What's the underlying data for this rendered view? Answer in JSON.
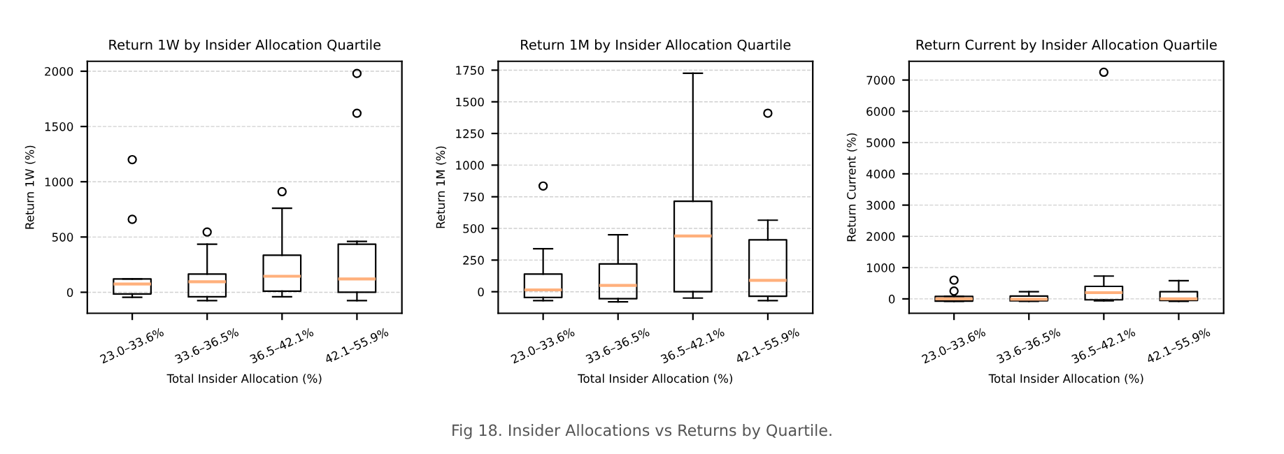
{
  "chart_data": [
    {
      "type": "box",
      "title": "Return 1W by Insider Allocation Quartile",
      "xlabel": "Total Insider Allocation (%)",
      "ylabel": "Return 1W (%)",
      "categories": [
        "23.0–33.6%",
        "33.6–36.5%",
        "36.5–42.1%",
        "42.1–55.9%"
      ],
      "ylim": [
        -190,
        2090
      ],
      "yticks": [
        0,
        500,
        1000,
        1500,
        2000
      ],
      "grid": "y",
      "boxes": [
        {
          "low": -45,
          "q1": -15,
          "median": 75,
          "q3": 120,
          "high": 120,
          "outliers": [
            660,
            1200
          ]
        },
        {
          "low": -75,
          "q1": -40,
          "median": 95,
          "q3": 165,
          "high": 435,
          "outliers": [
            545
          ]
        },
        {
          "low": -40,
          "q1": 10,
          "median": 145,
          "q3": 335,
          "high": 760,
          "outliers": [
            910
          ]
        },
        {
          "low": -75,
          "q1": 0,
          "median": 120,
          "q3": 435,
          "high": 460,
          "outliers": [
            1620,
            1980
          ]
        }
      ]
    },
    {
      "type": "box",
      "title": "Return 1M by Insider Allocation Quartile",
      "xlabel": "Total Insider Allocation (%)",
      "ylabel": "Return 1M (%)",
      "categories": [
        "23.0–33.6%",
        "33.6–36.5%",
        "36.5–42.1%",
        "42.1–55.9%"
      ],
      "ylim": [
        -170,
        1820
      ],
      "yticks": [
        0,
        250,
        500,
        750,
        1000,
        1250,
        1500,
        1750
      ],
      "grid": "y",
      "boxes": [
        {
          "low": -70,
          "q1": -45,
          "median": 15,
          "q3": 140,
          "high": 340,
          "outliers": [
            835
          ]
        },
        {
          "low": -80,
          "q1": -55,
          "median": 50,
          "q3": 220,
          "high": 450
        },
        {
          "low": -50,
          "q1": 0,
          "median": 440,
          "q3": 715,
          "high": 1725
        },
        {
          "low": -70,
          "q1": -35,
          "median": 90,
          "q3": 410,
          "high": 565,
          "outliers": [
            1410
          ]
        }
      ]
    },
    {
      "type": "box",
      "title": "Return Current by Insider Allocation Quartile",
      "xlabel": "Total Insider Allocation (%)",
      "ylabel": "Return Current (%)",
      "categories": [
        "23.0–33.6%",
        "33.6–36.5%",
        "36.5–42.1%",
        "42.1–55.9%"
      ],
      "ylim": [
        -460,
        7600
      ],
      "yticks": [
        0,
        1000,
        2000,
        3000,
        4000,
        5000,
        6000,
        7000
      ],
      "grid": "y",
      "boxes": [
        {
          "low": -80,
          "q1": -70,
          "median": 0,
          "q3": 80,
          "high": 80,
          "outliers": [
            250,
            600
          ]
        },
        {
          "low": -80,
          "q1": -60,
          "median": -10,
          "q3": 90,
          "high": 230
        },
        {
          "low": -60,
          "q1": -30,
          "median": 200,
          "q3": 400,
          "high": 730,
          "outliers": [
            7250
          ]
        },
        {
          "low": -80,
          "q1": -50,
          "median": 0,
          "q3": 230,
          "high": 580
        }
      ]
    },
    {
      "type": "other",
      "annotations": [
        "Fig 18. Insider Allocations vs Returns by Quartile."
      ]
    }
  ]
}
